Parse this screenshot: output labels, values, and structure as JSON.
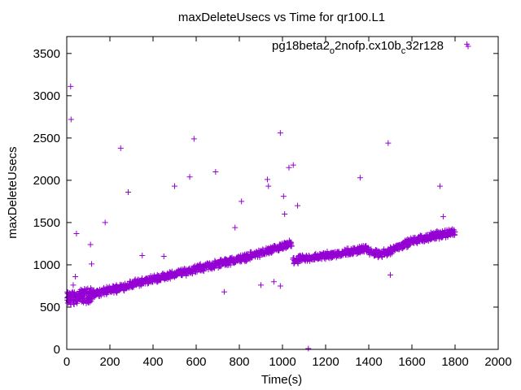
{
  "chart_data": {
    "type": "scatter",
    "title": "maxDeleteUsecs vs Time for qr100.L1",
    "xlabel": "Time(s)",
    "ylabel": "maxDeleteUsecs",
    "xlim": [
      0,
      2000
    ],
    "ylim": [
      0,
      3700
    ],
    "x_ticks": [
      "0",
      "200",
      "400",
      "600",
      "800",
      "1000",
      "1200",
      "1400",
      "1600",
      "1800",
      "2000"
    ],
    "y_ticks": [
      "0",
      "500",
      "1000",
      "1500",
      "2000",
      "2500",
      "3000",
      "3500"
    ],
    "grid": false,
    "legend_position": "top-right",
    "marker": "+",
    "color": "#9400d3",
    "series": [
      {
        "legend": {
          "base": "pg18beta2",
          "sub1": "o",
          "mid": "2nofp.cx10b",
          "sub2": "c",
          "end": "32r128"
        },
        "trend": [
          [
            0,
            600
          ],
          [
            100,
            640
          ],
          [
            200,
            700
          ],
          [
            300,
            770
          ],
          [
            400,
            830
          ],
          [
            500,
            890
          ],
          [
            600,
            950
          ],
          [
            700,
            1010
          ],
          [
            800,
            1070
          ],
          [
            900,
            1140
          ],
          [
            1000,
            1210
          ],
          [
            1040,
            1250
          ],
          [
            1050,
            1050
          ],
          [
            1100,
            1070
          ],
          [
            1200,
            1110
          ],
          [
            1300,
            1150
          ],
          [
            1380,
            1190
          ],
          [
            1420,
            1140
          ],
          [
            1450,
            1120
          ],
          [
            1500,
            1170
          ],
          [
            1560,
            1240
          ],
          [
            1600,
            1280
          ],
          [
            1650,
            1310
          ],
          [
            1700,
            1340
          ],
          [
            1750,
            1370
          ],
          [
            1800,
            1390
          ]
        ],
        "outliers": [
          [
            18,
            3110
          ],
          [
            20,
            2720
          ],
          [
            45,
            1370
          ],
          [
            40,
            860
          ],
          [
            30,
            760
          ],
          [
            110,
            1240
          ],
          [
            115,
            1010
          ],
          [
            178,
            1500
          ],
          [
            250,
            2380
          ],
          [
            285,
            1860
          ],
          [
            350,
            1110
          ],
          [
            450,
            1100
          ],
          [
            500,
            1930
          ],
          [
            570,
            2040
          ],
          [
            590,
            2490
          ],
          [
            690,
            2100
          ],
          [
            730,
            680
          ],
          [
            780,
            1440
          ],
          [
            810,
            1750
          ],
          [
            900,
            760
          ],
          [
            930,
            2010
          ],
          [
            935,
            1930
          ],
          [
            960,
            800
          ],
          [
            990,
            2560
          ],
          [
            990,
            750
          ],
          [
            1005,
            1810
          ],
          [
            1010,
            1600
          ],
          [
            1030,
            2150
          ],
          [
            1050,
            2180
          ],
          [
            1070,
            1700
          ],
          [
            1120,
            10
          ],
          [
            1360,
            2030
          ],
          [
            1490,
            2440
          ],
          [
            1500,
            880
          ],
          [
            1730,
            1930
          ],
          [
            1745,
            1570
          ],
          [
            1855,
            3610
          ]
        ]
      }
    ]
  }
}
